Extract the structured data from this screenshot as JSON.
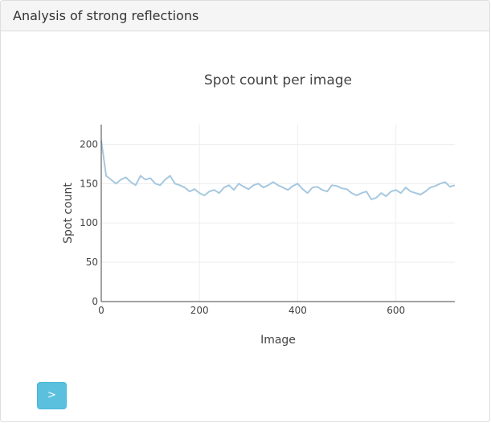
{
  "panel": {
    "title": "Analysis of strong reflections"
  },
  "next_button": {
    "label": ">"
  },
  "chart_data": {
    "type": "line",
    "title": "Spot count per image",
    "xlabel": "Image",
    "ylabel": "Spot count",
    "xlim": [
      0,
      720
    ],
    "ylim": [
      0,
      225
    ],
    "xticks": [
      0,
      200,
      400,
      600
    ],
    "yticks": [
      0,
      50,
      100,
      150,
      200
    ],
    "grid": true,
    "color": "#a6c8e0",
    "series": [
      {
        "x": [
          0,
          10,
          20,
          30,
          40,
          50,
          60,
          70,
          80,
          90,
          100,
          110,
          120,
          130,
          140,
          150,
          160,
          170,
          180,
          190,
          200,
          210,
          220,
          230,
          240,
          250,
          260,
          270,
          280,
          290,
          300,
          310,
          320,
          330,
          340,
          350,
          360,
          370,
          380,
          390,
          400,
          410,
          420,
          430,
          440,
          450,
          460,
          470,
          480,
          490,
          500,
          510,
          520,
          530,
          540,
          550,
          560,
          570,
          580,
          590,
          600,
          610,
          620,
          630,
          640,
          650,
          660,
          670,
          680,
          690,
          700,
          710,
          720
        ],
        "y": [
          205,
          160,
          155,
          150,
          155,
          158,
          152,
          148,
          160,
          155,
          157,
          150,
          148,
          155,
          160,
          150,
          148,
          145,
          140,
          143,
          138,
          135,
          140,
          142,
          138,
          145,
          148,
          142,
          150,
          146,
          143,
          148,
          150,
          145,
          148,
          152,
          148,
          145,
          142,
          147,
          150,
          143,
          138,
          145,
          146,
          142,
          140,
          148,
          147,
          144,
          143,
          138,
          135,
          138,
          140,
          130,
          132,
          138,
          134,
          140,
          142,
          138,
          145,
          140,
          138,
          136,
          140,
          145,
          147,
          150,
          152,
          146,
          148
        ]
      }
    ]
  }
}
